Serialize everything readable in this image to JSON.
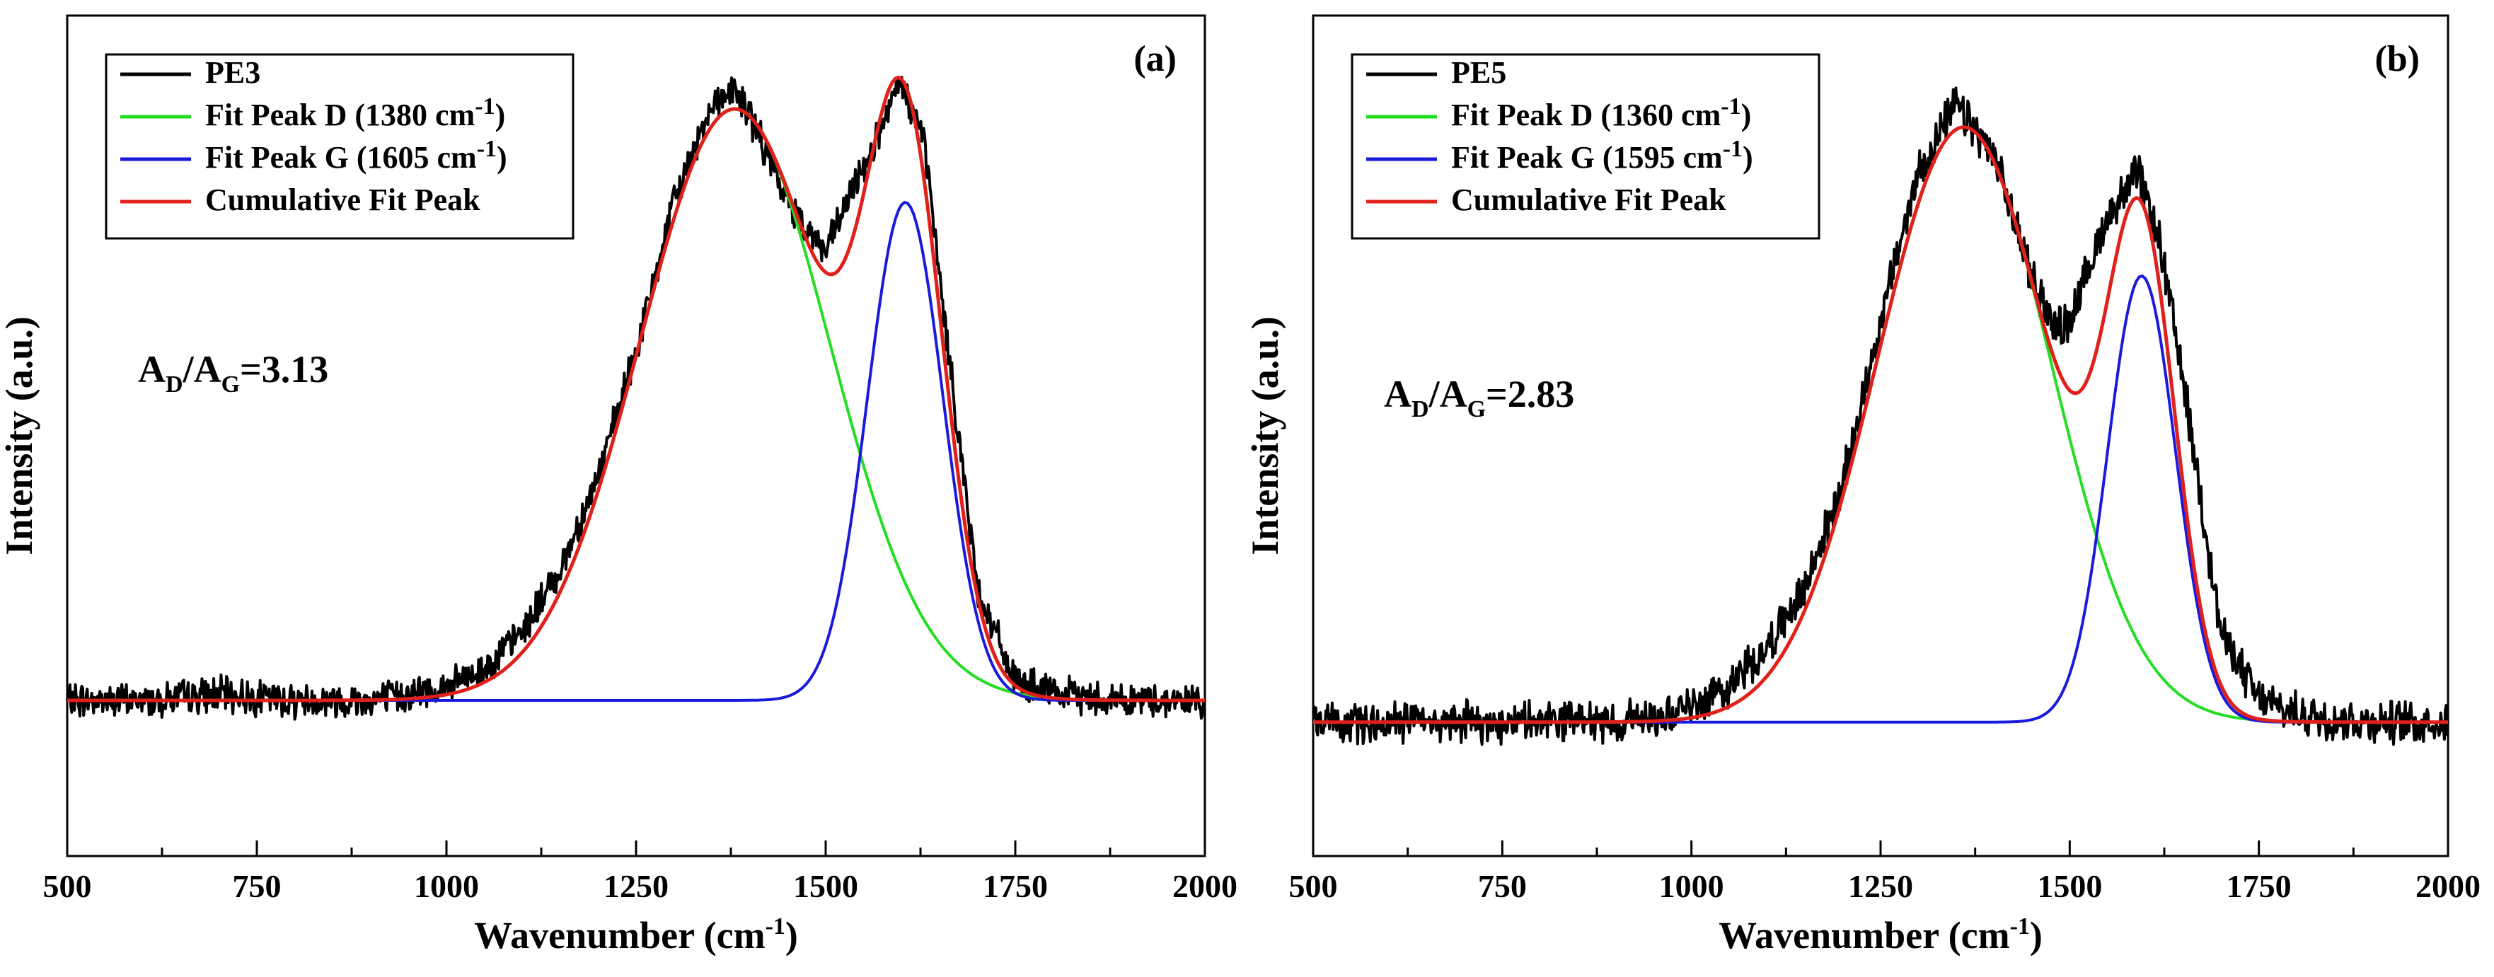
{
  "chart_data": [
    {
      "type": "line",
      "panel_label": "(a)",
      "xlabel": "Wavenumber (cm",
      "xlabel_sup": "-1",
      "xlabel_tail": ")",
      "ylabel": "Intensity (a.u.)",
      "xlim": [
        500,
        2000
      ],
      "ylim": [
        -0.25,
        1.1
      ],
      "xticks": [
        500,
        750,
        1000,
        1250,
        1500,
        1750,
        2000
      ],
      "xtick_labels": [
        "500",
        "750",
        "1000",
        "1250",
        "1500",
        "1750",
        "2000"
      ],
      "ratio": {
        "prefix": "A",
        "sub1": "D",
        "slash": "/A",
        "sub2": "G",
        "value": "=3.13"
      },
      "legend": [
        {
          "key": "data",
          "label": "PE3",
          "sup": "",
          "tail": "",
          "color": "#000000"
        },
        {
          "key": "d",
          "label": "Fit Peak D (1380 cm",
          "sup": "-1",
          "tail": ")",
          "color": "#22dd22"
        },
        {
          "key": "g",
          "label": "Fit Peak G (1605 cm",
          "sup": "-1",
          "tail": ")",
          "color": "#1a1add"
        },
        {
          "key": "cum",
          "label": "Cumulative Fit Peak",
          "sup": "",
          "tail": "",
          "color": "#e0201a"
        }
      ],
      "model": {
        "baseline": 0.0,
        "peaks": [
          {
            "name": "D",
            "center": 1380,
            "amplitude": 0.95,
            "sigma": 125
          },
          {
            "name": "G",
            "center": 1605,
            "amplitude": 0.8,
            "sigma": 50
          }
        ]
      },
      "series": [
        {
          "name": "PE3",
          "role": "data",
          "color": "#000000",
          "x": [
            500,
            600,
            700,
            800,
            900,
            1000,
            1050,
            1100,
            1150,
            1200,
            1250,
            1300,
            1350,
            1380,
            1400,
            1450,
            1500,
            1550,
            1600,
            1630,
            1650,
            1700,
            1750,
            1800,
            1900,
            2000
          ],
          "y": [
            0.0,
            0.0,
            0.01,
            0.0,
            0.0,
            0.02,
            0.05,
            0.11,
            0.21,
            0.36,
            0.56,
            0.8,
            0.96,
            0.98,
            0.94,
            0.8,
            0.72,
            0.86,
            0.99,
            0.9,
            0.68,
            0.18,
            0.03,
            0.01,
            0.0,
            0.0
          ]
        },
        {
          "name": "Fit Peak D",
          "role": "d",
          "color": "#22dd22"
        },
        {
          "name": "Fit Peak G",
          "role": "g",
          "color": "#1a1add"
        },
        {
          "name": "Cumulative Fit Peak",
          "role": "cum",
          "color": "#e0201a"
        }
      ]
    },
    {
      "type": "line",
      "panel_label": "(b)",
      "xlabel": "Wavenumber (cm",
      "xlabel_sup": "-1",
      "xlabel_tail": ")",
      "ylabel": "Intensity (a.u.)",
      "xlim": [
        500,
        2000
      ],
      "ylim": [
        -0.18,
        0.95
      ],
      "xticks": [
        500,
        750,
        1000,
        1250,
        1500,
        1750,
        2000
      ],
      "xtick_labels": [
        "500",
        "750",
        "1000",
        "1250",
        "1500",
        "1750",
        "2000"
      ],
      "ratio": {
        "prefix": "A",
        "sub1": "D",
        "slash": "/A",
        "sub2": "G",
        "value": "=2.83"
      },
      "legend": [
        {
          "key": "data",
          "label": "PE5",
          "sup": "",
          "tail": "",
          "color": "#000000"
        },
        {
          "key": "d",
          "label": "Fit Peak D (1360 cm",
          "sup": "-1",
          "tail": ")",
          "color": "#22dd22"
        },
        {
          "key": "g",
          "label": "Fit Peak G (1595 cm",
          "sup": "-1",
          "tail": ")",
          "color": "#1a1add"
        },
        {
          "key": "cum",
          "label": "Cumulative Fit Peak",
          "sup": "",
          "tail": "",
          "color": "#e0201a"
        }
      ],
      "model": {
        "baseline": 0.0,
        "peaks": [
          {
            "name": "D",
            "center": 1360,
            "amplitude": 0.8,
            "sigma": 115
          },
          {
            "name": "G",
            "center": 1595,
            "amplitude": 0.6,
            "sigma": 45
          }
        ]
      },
      "series": [
        {
          "name": "PE5",
          "role": "data",
          "color": "#000000",
          "x": [
            500,
            600,
            700,
            800,
            900,
            1000,
            1050,
            1100,
            1150,
            1200,
            1250,
            1300,
            1350,
            1400,
            1450,
            1480,
            1500,
            1550,
            1590,
            1620,
            1650,
            1700,
            1750,
            1800,
            1900,
            2000
          ],
          "y": [
            0.0,
            0.0,
            0.0,
            0.0,
            0.0,
            0.02,
            0.05,
            0.1,
            0.18,
            0.32,
            0.54,
            0.74,
            0.83,
            0.76,
            0.6,
            0.53,
            0.54,
            0.68,
            0.74,
            0.64,
            0.46,
            0.12,
            0.03,
            0.01,
            0.0,
            0.0
          ]
        },
        {
          "name": "Fit Peak D",
          "role": "d",
          "color": "#22dd22"
        },
        {
          "name": "Fit Peak G",
          "role": "g",
          "color": "#1a1add"
        },
        {
          "name": "Cumulative Fit Peak",
          "role": "cum",
          "color": "#e0201a"
        }
      ]
    }
  ]
}
